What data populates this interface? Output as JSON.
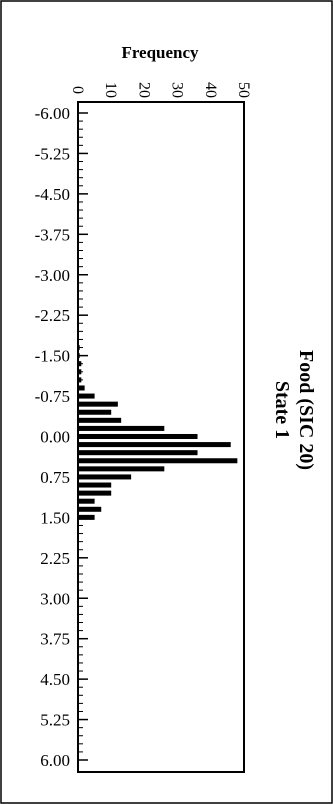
{
  "chart_data": {
    "type": "bar",
    "orientation": "horizontal",
    "title": "Food (SIC 20)",
    "subtitle": "State 1",
    "xlabel": "Frequency",
    "ylabel": "",
    "xlim": [
      0,
      50
    ],
    "ylim": [
      -6.0,
      6.0
    ],
    "x_ticks": [
      "0",
      "10",
      "20",
      "30",
      "40",
      "50"
    ],
    "y_ticks": [
      "-6.00",
      "-5.25",
      "-4.50",
      "-3.75",
      "-3.00",
      "-2.25",
      "-1.50",
      "-0.75",
      "0.00",
      "0.75",
      "1.50",
      "2.25",
      "3.00",
      "3.75",
      "4.50",
      "5.25",
      "6.00"
    ],
    "bin_width": 0.15,
    "bins": [
      {
        "y": -1.65,
        "value": 0.5
      },
      {
        "y": -1.5,
        "value": 0.5
      },
      {
        "y": -1.35,
        "value": 1
      },
      {
        "y": -1.2,
        "value": 1
      },
      {
        "y": -1.05,
        "value": 1
      },
      {
        "y": -0.9,
        "value": 2
      },
      {
        "y": -0.75,
        "value": 5
      },
      {
        "y": -0.6,
        "value": 12
      },
      {
        "y": -0.45,
        "value": 10
      },
      {
        "y": -0.3,
        "value": 13
      },
      {
        "y": -0.15,
        "value": 26
      },
      {
        "y": 0.0,
        "value": 36
      },
      {
        "y": 0.15,
        "value": 46
      },
      {
        "y": 0.3,
        "value": 36
      },
      {
        "y": 0.45,
        "value": 48
      },
      {
        "y": 0.6,
        "value": 26
      },
      {
        "y": 0.75,
        "value": 16
      },
      {
        "y": 0.9,
        "value": 10
      },
      {
        "y": 1.05,
        "value": 10
      },
      {
        "y": 1.2,
        "value": 5
      },
      {
        "y": 1.35,
        "value": 7
      },
      {
        "y": 1.5,
        "value": 5
      }
    ],
    "grid": false,
    "legend": "none"
  }
}
